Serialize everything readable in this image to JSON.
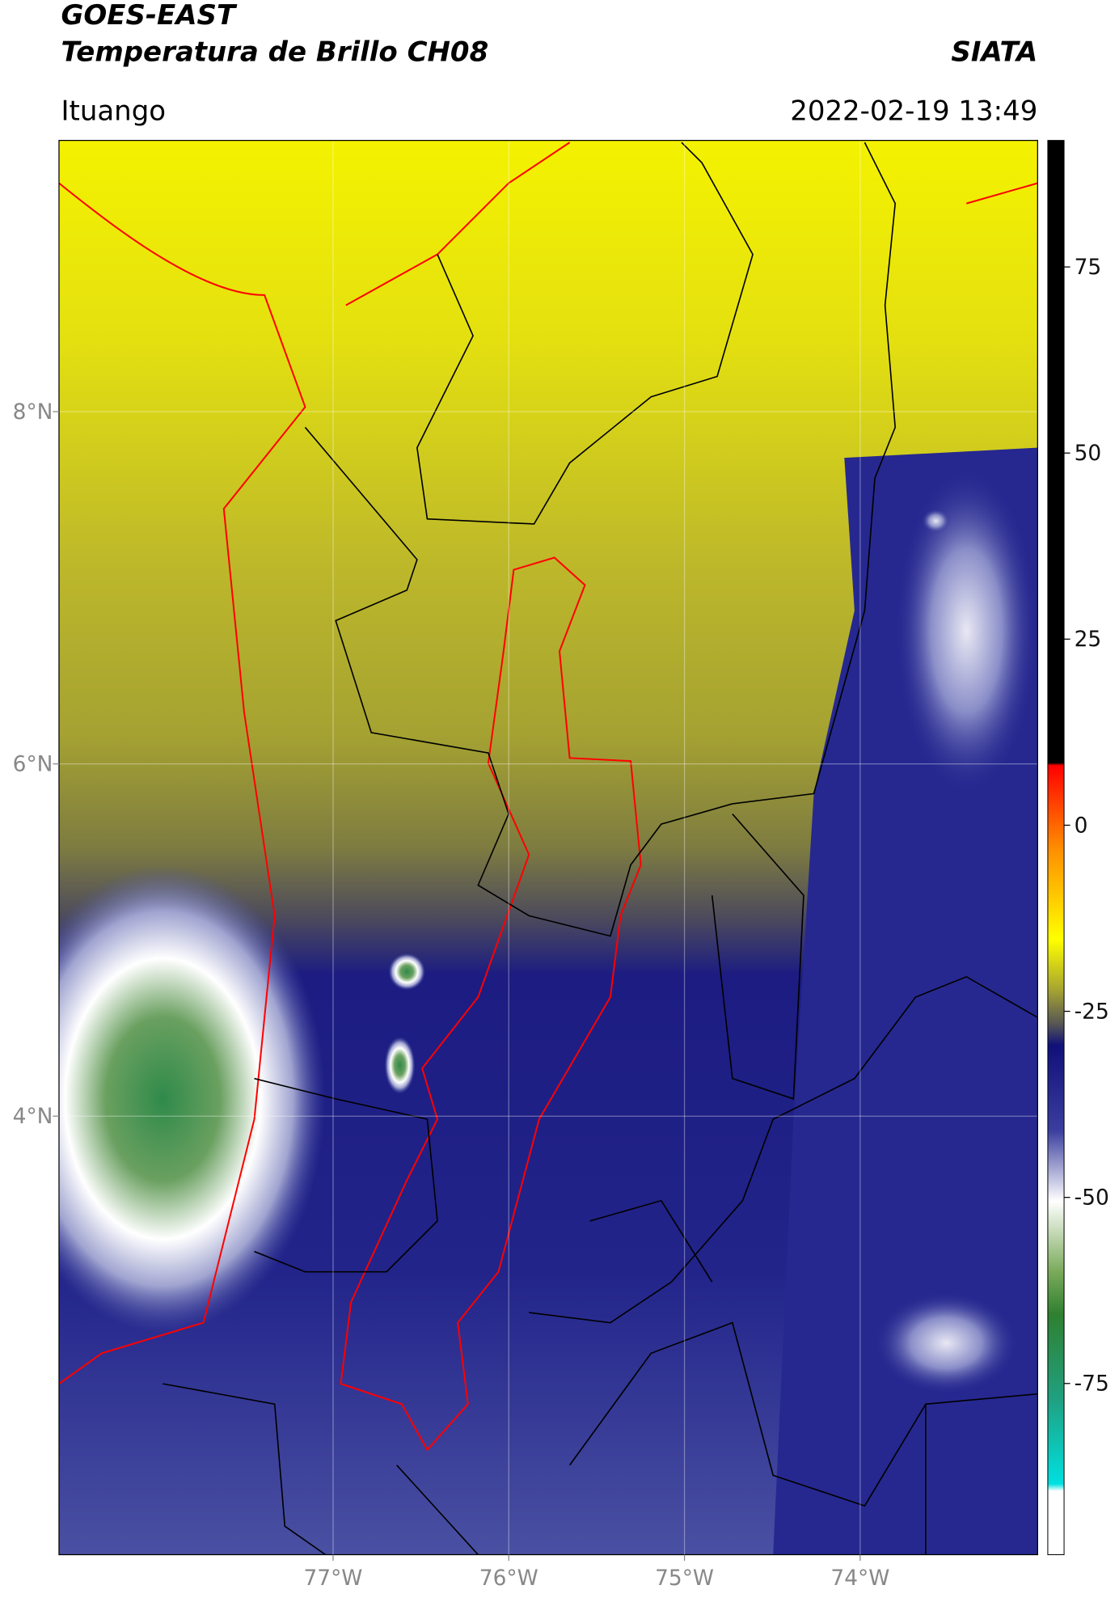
{
  "header": {
    "title": "GOES-EAST",
    "subtitle": "Temperatura de Brillo CH08",
    "agency": "SIATA",
    "location": "Ituango",
    "timestamp": "2022-02-19 13:49"
  },
  "map": {
    "xlim": [
      -78.56,
      -72.99
    ],
    "ylim": [
      1.51,
      9.54
    ],
    "xticks": [
      {
        "value": -77,
        "label": "77°W"
      },
      {
        "value": -76,
        "label": "76°W"
      },
      {
        "value": -75,
        "label": "75°W"
      },
      {
        "value": -74,
        "label": "74°W"
      }
    ],
    "yticks": [
      {
        "value": 8,
        "label": "8°N"
      },
      {
        "value": 6,
        "label": "6°N"
      },
      {
        "value": 4,
        "label": "4°N"
      }
    ]
  },
  "colorbar": {
    "lim": [
      -98,
      92
    ],
    "ticks": [
      75,
      50,
      25,
      0,
      -25,
      -50,
      -75
    ]
  }
}
